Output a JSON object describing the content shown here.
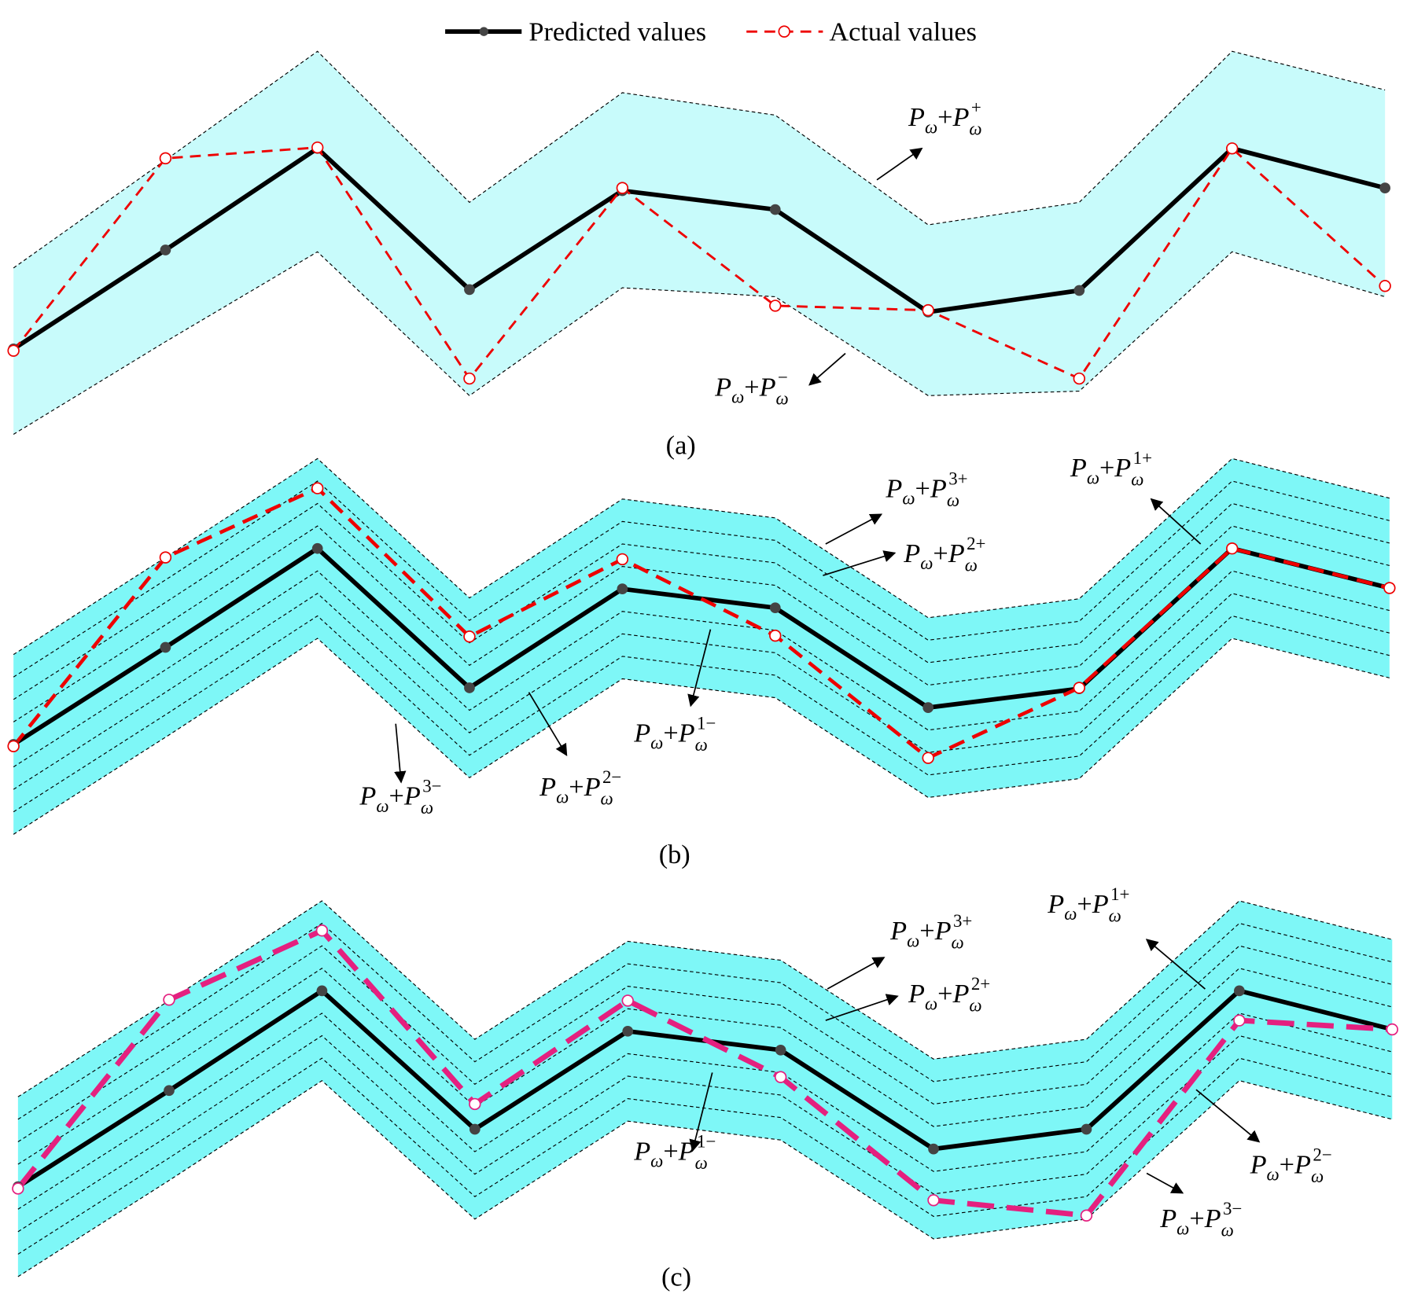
{
  "legend": {
    "predicted": "Predicted values",
    "actual": "Actual values"
  },
  "panels": [
    {
      "label": "(a)",
      "annotations": [
        [
          "P",
          "ω",
          "+",
          "P",
          "ω",
          "+"
        ],
        [
          "P",
          "ω",
          "+",
          "P",
          "ω",
          "−"
        ]
      ]
    },
    {
      "label": "(b)",
      "annotations": [
        [
          "P",
          "ω",
          "+",
          "P",
          "ω",
          "3+"
        ],
        [
          "P",
          "ω",
          "+",
          "P",
          "ω",
          "2+"
        ],
        [
          "P",
          "ω",
          "+",
          "P",
          "ω",
          "1+"
        ],
        [
          "P",
          "ω",
          "+",
          "P",
          "ω",
          "1−"
        ],
        [
          "P",
          "ω",
          "+",
          "P",
          "ω",
          "2−"
        ],
        [
          "P",
          "ω",
          "+",
          "P",
          "ω",
          "3−"
        ]
      ]
    },
    {
      "label": "(c)",
      "annotations": [
        [
          "P",
          "ω",
          "+",
          "P",
          "ω",
          "3+"
        ],
        [
          "P",
          "ω",
          "+",
          "P",
          "ω",
          "2+"
        ],
        [
          "P",
          "ω",
          "+",
          "P",
          "ω",
          "1+"
        ],
        [
          "P",
          "ω",
          "+",
          "P",
          "ω",
          "1−"
        ],
        [
          "P",
          "ω",
          "+",
          "P",
          "ω",
          "2−"
        ],
        [
          "P",
          "ω",
          "+",
          "P",
          "ω",
          "3−"
        ]
      ]
    }
  ]
}
